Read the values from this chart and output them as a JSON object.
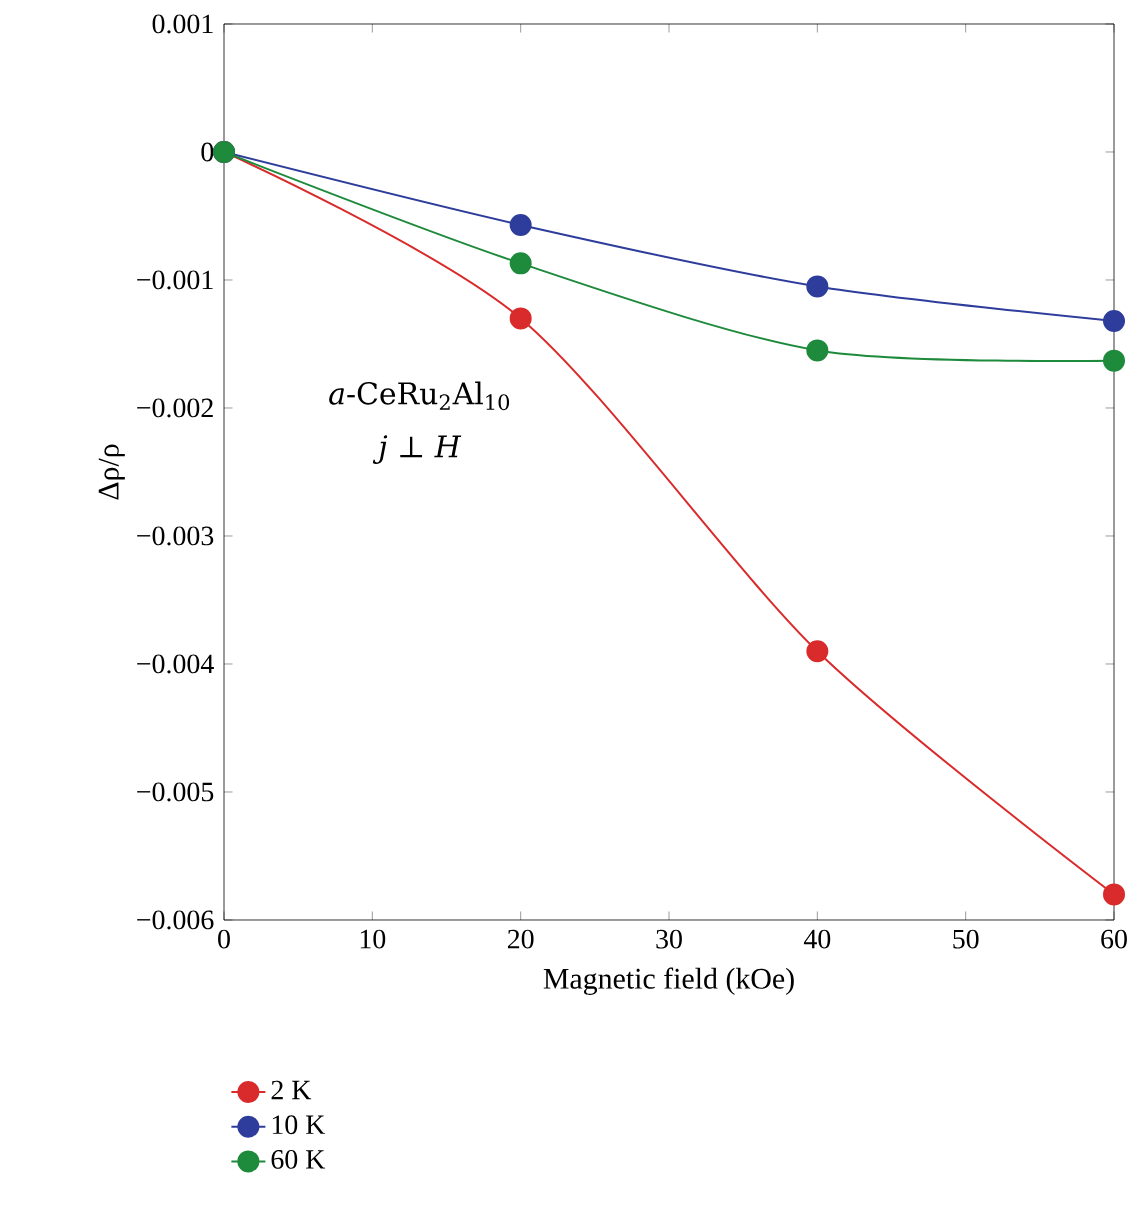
{
  "chart_data": {
    "type": "line",
    "xlabel": "Magnetic field (kOe)",
    "ylabel": "Δρ/ρ",
    "x": [
      0,
      20,
      40,
      60
    ],
    "series": [
      {
        "name": "2 K",
        "color": "#d92b2b",
        "values": [
          0,
          -0.0013,
          -0.0039,
          -0.0058
        ]
      },
      {
        "name": "10 K",
        "color": "#2e3d9c",
        "values": [
          0,
          -0.00057,
          -0.00105,
          -0.00132
        ]
      },
      {
        "name": "60 K",
        "color": "#1e8a3c",
        "values": [
          0,
          -0.00087,
          -0.00155,
          -0.00163
        ]
      }
    ],
    "xlim": [
      0,
      60
    ],
    "ylim": [
      -0.006,
      0.001
    ],
    "xticks": [
      0,
      10,
      20,
      30,
      40,
      50,
      60
    ],
    "yticks": [
      {
        "value": -0.006,
        "label": "−0.006"
      },
      {
        "value": -0.005,
        "label": "−0.005"
      },
      {
        "value": -0.004,
        "label": "−0.004"
      },
      {
        "value": -0.003,
        "label": "−0.003"
      },
      {
        "value": -0.002,
        "label": "−0.002"
      },
      {
        "value": -0.001,
        "label": "−0.001"
      },
      {
        "value": 0,
        "label": "0"
      },
      {
        "value": 0.001,
        "label": "0.001"
      }
    ],
    "annotations": [
      "*a*-CeRu$_{2}$Al$_{10}$",
      "*j* ⊥ *H*"
    ],
    "legend": "bottom left",
    "marker": "circle",
    "line_style": "solid"
  }
}
